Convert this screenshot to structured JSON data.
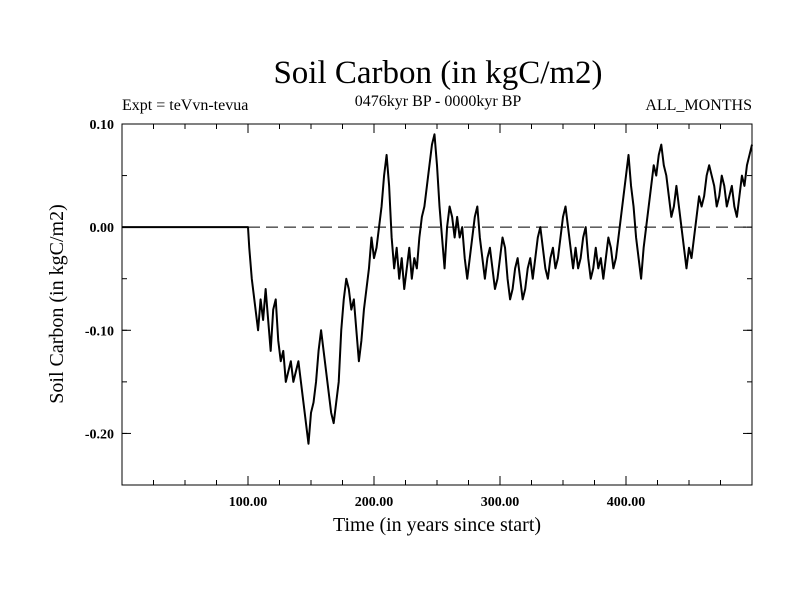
{
  "chart_data": {
    "type": "line",
    "title": "Soil Carbon (in kgC/m2)",
    "subtitle": "0476kyr BP - 0000kyr BP",
    "expt_label": "Expt = teVvn-tevua",
    "months_label": "ALL_MONTHS",
    "xlabel": "Time (in years since start)",
    "ylabel": "Soil Carbon (in kgC/m2)",
    "xlim": [
      0,
      500
    ],
    "ylim": [
      -0.25,
      0.1
    ],
    "x_ticks": [
      {
        "value": 100,
        "label": "100.00"
      },
      {
        "value": 200,
        "label": "200.00"
      },
      {
        "value": 300,
        "label": "300.00"
      },
      {
        "value": 400,
        "label": "400.00"
      }
    ],
    "y_ticks": [
      {
        "value": 0.1,
        "label": "0.10"
      },
      {
        "value": 0.0,
        "label": "0.00"
      },
      {
        "value": -0.1,
        "label": "-0.10"
      },
      {
        "value": -0.2,
        "label": "-0.20"
      }
    ],
    "zero_line": true,
    "grid": false,
    "series": [
      {
        "color": "#000000",
        "points": [
          [
            0,
            0.0
          ],
          [
            100,
            0.0
          ],
          [
            101,
            -0.02
          ],
          [
            103,
            -0.05
          ],
          [
            106,
            -0.08
          ],
          [
            108,
            -0.1
          ],
          [
            110,
            -0.07
          ],
          [
            112,
            -0.09
          ],
          [
            114,
            -0.06
          ],
          [
            116,
            -0.09
          ],
          [
            118,
            -0.12
          ],
          [
            120,
            -0.08
          ],
          [
            122,
            -0.07
          ],
          [
            124,
            -0.11
          ],
          [
            126,
            -0.13
          ],
          [
            128,
            -0.12
          ],
          [
            130,
            -0.15
          ],
          [
            132,
            -0.14
          ],
          [
            134,
            -0.13
          ],
          [
            136,
            -0.15
          ],
          [
            138,
            -0.14
          ],
          [
            140,
            -0.13
          ],
          [
            142,
            -0.15
          ],
          [
            144,
            -0.17
          ],
          [
            146,
            -0.19
          ],
          [
            148,
            -0.21
          ],
          [
            150,
            -0.18
          ],
          [
            152,
            -0.17
          ],
          [
            154,
            -0.15
          ],
          [
            156,
            -0.12
          ],
          [
            158,
            -0.1
          ],
          [
            160,
            -0.12
          ],
          [
            162,
            -0.14
          ],
          [
            164,
            -0.16
          ],
          [
            166,
            -0.18
          ],
          [
            168,
            -0.19
          ],
          [
            170,
            -0.17
          ],
          [
            172,
            -0.15
          ],
          [
            174,
            -0.1
          ],
          [
            176,
            -0.07
          ],
          [
            178,
            -0.05
          ],
          [
            180,
            -0.06
          ],
          [
            182,
            -0.08
          ],
          [
            184,
            -0.07
          ],
          [
            186,
            -0.1
          ],
          [
            188,
            -0.13
          ],
          [
            190,
            -0.11
          ],
          [
            192,
            -0.08
          ],
          [
            194,
            -0.06
          ],
          [
            196,
            -0.04
          ],
          [
            198,
            -0.01
          ],
          [
            200,
            -0.03
          ],
          [
            202,
            -0.02
          ],
          [
            204,
            0.0
          ],
          [
            206,
            0.02
          ],
          [
            208,
            0.05
          ],
          [
            210,
            0.07
          ],
          [
            212,
            0.04
          ],
          [
            214,
            -0.01
          ],
          [
            216,
            -0.04
          ],
          [
            218,
            -0.02
          ],
          [
            220,
            -0.05
          ],
          [
            222,
            -0.03
          ],
          [
            224,
            -0.06
          ],
          [
            226,
            -0.04
          ],
          [
            228,
            -0.02
          ],
          [
            230,
            -0.05
          ],
          [
            232,
            -0.03
          ],
          [
            234,
            -0.04
          ],
          [
            236,
            -0.01
          ],
          [
            238,
            0.01
          ],
          [
            240,
            0.02
          ],
          [
            242,
            0.04
          ],
          [
            244,
            0.06
          ],
          [
            246,
            0.08
          ],
          [
            248,
            0.09
          ],
          [
            250,
            0.06
          ],
          [
            252,
            0.02
          ],
          [
            254,
            -0.01
          ],
          [
            256,
            -0.04
          ],
          [
            258,
            0.0
          ],
          [
            260,
            0.02
          ],
          [
            262,
            0.01
          ],
          [
            264,
            -0.01
          ],
          [
            266,
            0.01
          ],
          [
            268,
            -0.01
          ],
          [
            270,
            0.0
          ],
          [
            272,
            -0.03
          ],
          [
            274,
            -0.05
          ],
          [
            276,
            -0.03
          ],
          [
            278,
            -0.01
          ],
          [
            280,
            0.01
          ],
          [
            282,
            0.02
          ],
          [
            284,
            -0.01
          ],
          [
            286,
            -0.03
          ],
          [
            288,
            -0.05
          ],
          [
            290,
            -0.03
          ],
          [
            292,
            -0.02
          ],
          [
            294,
            -0.04
          ],
          [
            296,
            -0.06
          ],
          [
            298,
            -0.05
          ],
          [
            300,
            -0.03
          ],
          [
            302,
            -0.01
          ],
          [
            304,
            -0.02
          ],
          [
            306,
            -0.05
          ],
          [
            308,
            -0.07
          ],
          [
            310,
            -0.06
          ],
          [
            312,
            -0.04
          ],
          [
            314,
            -0.03
          ],
          [
            316,
            -0.05
          ],
          [
            318,
            -0.07
          ],
          [
            320,
            -0.06
          ],
          [
            322,
            -0.04
          ],
          [
            324,
            -0.03
          ],
          [
            326,
            -0.05
          ],
          [
            328,
            -0.03
          ],
          [
            330,
            -0.01
          ],
          [
            332,
            0.0
          ],
          [
            334,
            -0.02
          ],
          [
            336,
            -0.04
          ],
          [
            338,
            -0.05
          ],
          [
            340,
            -0.03
          ],
          [
            342,
            -0.02
          ],
          [
            344,
            -0.04
          ],
          [
            346,
            -0.03
          ],
          [
            348,
            -0.01
          ],
          [
            350,
            0.01
          ],
          [
            352,
            0.02
          ],
          [
            354,
            0.0
          ],
          [
            356,
            -0.02
          ],
          [
            358,
            -0.04
          ],
          [
            360,
            -0.02
          ],
          [
            362,
            -0.04
          ],
          [
            364,
            -0.03
          ],
          [
            366,
            -0.01
          ],
          [
            368,
            0.0
          ],
          [
            370,
            -0.03
          ],
          [
            372,
            -0.05
          ],
          [
            374,
            -0.04
          ],
          [
            376,
            -0.02
          ],
          [
            378,
            -0.04
          ],
          [
            380,
            -0.03
          ],
          [
            382,
            -0.05
          ],
          [
            384,
            -0.03
          ],
          [
            386,
            -0.01
          ],
          [
            388,
            -0.02
          ],
          [
            390,
            -0.04
          ],
          [
            392,
            -0.03
          ],
          [
            394,
            -0.01
          ],
          [
            396,
            0.01
          ],
          [
            398,
            0.03
          ],
          [
            400,
            0.05
          ],
          [
            402,
            0.07
          ],
          [
            404,
            0.04
          ],
          [
            406,
            0.02
          ],
          [
            408,
            -0.01
          ],
          [
            410,
            -0.03
          ],
          [
            412,
            -0.05
          ],
          [
            414,
            -0.02
          ],
          [
            416,
            0.0
          ],
          [
            418,
            0.02
          ],
          [
            420,
            0.04
          ],
          [
            422,
            0.06
          ],
          [
            424,
            0.05
          ],
          [
            426,
            0.07
          ],
          [
            428,
            0.08
          ],
          [
            430,
            0.06
          ],
          [
            432,
            0.05
          ],
          [
            434,
            0.03
          ],
          [
            436,
            0.01
          ],
          [
            438,
            0.02
          ],
          [
            440,
            0.04
          ],
          [
            442,
            0.02
          ],
          [
            444,
            0.0
          ],
          [
            446,
            -0.02
          ],
          [
            448,
            -0.04
          ],
          [
            450,
            -0.02
          ],
          [
            452,
            -0.03
          ],
          [
            454,
            -0.01
          ],
          [
            456,
            0.01
          ],
          [
            458,
            0.03
          ],
          [
            460,
            0.02
          ],
          [
            462,
            0.03
          ],
          [
            464,
            0.05
          ],
          [
            466,
            0.06
          ],
          [
            468,
            0.05
          ],
          [
            470,
            0.04
          ],
          [
            472,
            0.02
          ],
          [
            474,
            0.03
          ],
          [
            476,
            0.05
          ],
          [
            478,
            0.04
          ],
          [
            480,
            0.02
          ],
          [
            482,
            0.03
          ],
          [
            484,
            0.04
          ],
          [
            486,
            0.02
          ],
          [
            488,
            0.01
          ],
          [
            490,
            0.03
          ],
          [
            492,
            0.05
          ],
          [
            494,
            0.04
          ],
          [
            496,
            0.06
          ],
          [
            498,
            0.07
          ],
          [
            500,
            0.08
          ]
        ]
      }
    ]
  }
}
